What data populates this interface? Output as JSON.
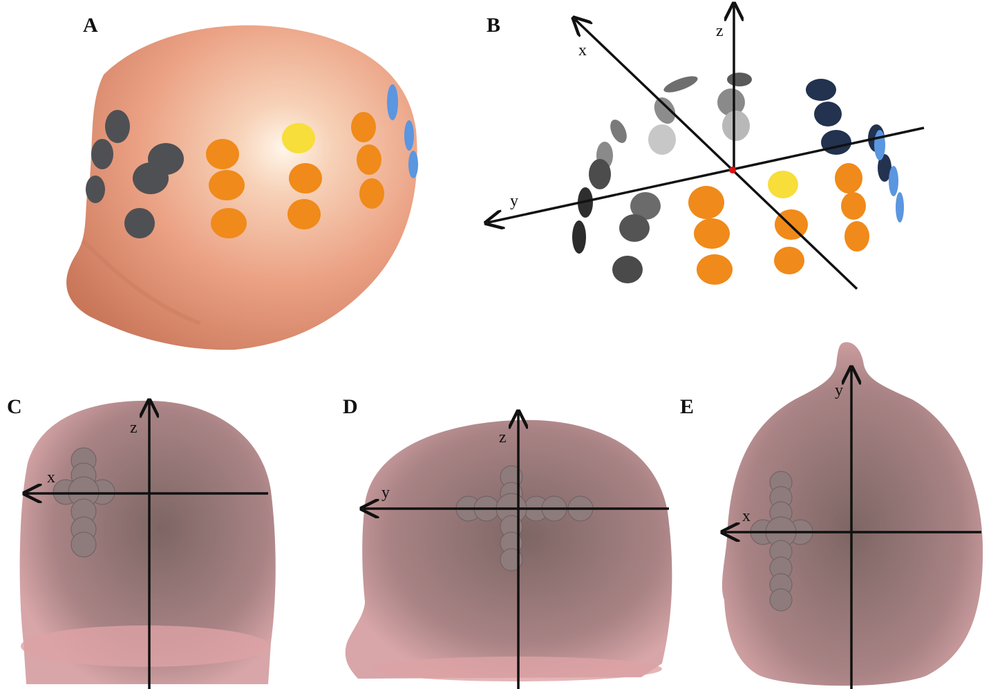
{
  "panels": [
    {
      "letter": "A"
    },
    {
      "letter": "B",
      "axes": {
        "x": "x",
        "y": "y",
        "z": "z"
      }
    },
    {
      "letter": "C",
      "axes": {
        "h": "x",
        "v": "z"
      }
    },
    {
      "letter": "D",
      "axes": {
        "h": "y",
        "v": "z"
      }
    },
    {
      "letter": "E",
      "axes": {
        "h": "x",
        "v": "y"
      }
    }
  ],
  "colors": {
    "skin": "#e9a184",
    "skin_light": "#f6d3bd",
    "translucent_head": "#d99c9f",
    "electrode_gray": "#5a5a5a",
    "electrode_orange": "#f08a1a",
    "electrode_yellow": "#f7de3a",
    "electrode_blue": "#5b96e0",
    "electrode_navy": "#22324f",
    "origin": "#e01010"
  }
}
